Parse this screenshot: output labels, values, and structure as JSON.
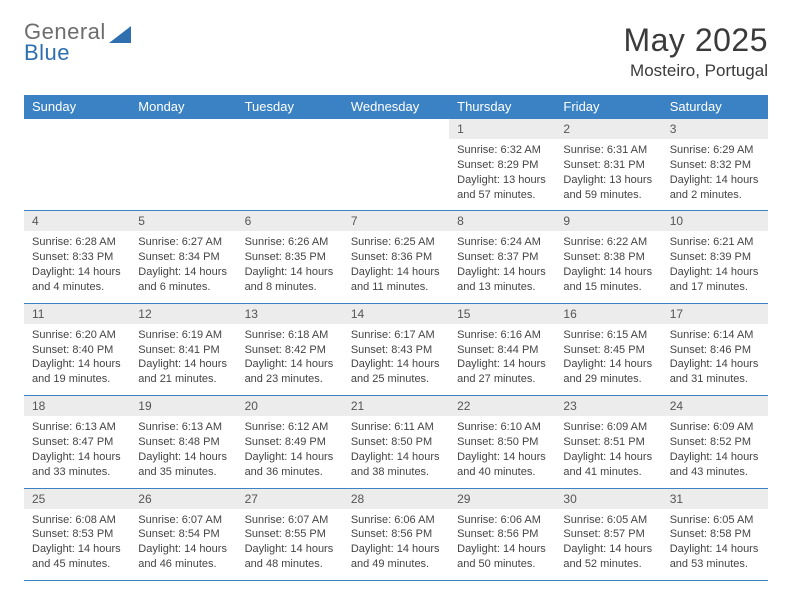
{
  "brand": {
    "word1": "General",
    "word2": "Blue",
    "word1_color": "#6d6d6d",
    "word2_color": "#2f6fb0",
    "sail_color": "#2f6fb0"
  },
  "title": "May 2025",
  "location": "Mosteiro, Portugal",
  "colors": {
    "header_bg": "#3b82c4",
    "header_fg": "#ffffff",
    "daynum_bg": "#ececec",
    "daynum_fg": "#555555",
    "body_fg": "#444444",
    "rule": "#3b82c4"
  },
  "days_of_week": [
    "Sunday",
    "Monday",
    "Tuesday",
    "Wednesday",
    "Thursday",
    "Friday",
    "Saturday"
  ],
  "weeks": [
    [
      null,
      null,
      null,
      null,
      {
        "n": "1",
        "sr": "Sunrise: 6:32 AM",
        "ss": "Sunset: 8:29 PM",
        "dl": "Daylight: 13 hours and 57 minutes."
      },
      {
        "n": "2",
        "sr": "Sunrise: 6:31 AM",
        "ss": "Sunset: 8:31 PM",
        "dl": "Daylight: 13 hours and 59 minutes."
      },
      {
        "n": "3",
        "sr": "Sunrise: 6:29 AM",
        "ss": "Sunset: 8:32 PM",
        "dl": "Daylight: 14 hours and 2 minutes."
      }
    ],
    [
      {
        "n": "4",
        "sr": "Sunrise: 6:28 AM",
        "ss": "Sunset: 8:33 PM",
        "dl": "Daylight: 14 hours and 4 minutes."
      },
      {
        "n": "5",
        "sr": "Sunrise: 6:27 AM",
        "ss": "Sunset: 8:34 PM",
        "dl": "Daylight: 14 hours and 6 minutes."
      },
      {
        "n": "6",
        "sr": "Sunrise: 6:26 AM",
        "ss": "Sunset: 8:35 PM",
        "dl": "Daylight: 14 hours and 8 minutes."
      },
      {
        "n": "7",
        "sr": "Sunrise: 6:25 AM",
        "ss": "Sunset: 8:36 PM",
        "dl": "Daylight: 14 hours and 11 minutes."
      },
      {
        "n": "8",
        "sr": "Sunrise: 6:24 AM",
        "ss": "Sunset: 8:37 PM",
        "dl": "Daylight: 14 hours and 13 minutes."
      },
      {
        "n": "9",
        "sr": "Sunrise: 6:22 AM",
        "ss": "Sunset: 8:38 PM",
        "dl": "Daylight: 14 hours and 15 minutes."
      },
      {
        "n": "10",
        "sr": "Sunrise: 6:21 AM",
        "ss": "Sunset: 8:39 PM",
        "dl": "Daylight: 14 hours and 17 minutes."
      }
    ],
    [
      {
        "n": "11",
        "sr": "Sunrise: 6:20 AM",
        "ss": "Sunset: 8:40 PM",
        "dl": "Daylight: 14 hours and 19 minutes."
      },
      {
        "n": "12",
        "sr": "Sunrise: 6:19 AM",
        "ss": "Sunset: 8:41 PM",
        "dl": "Daylight: 14 hours and 21 minutes."
      },
      {
        "n": "13",
        "sr": "Sunrise: 6:18 AM",
        "ss": "Sunset: 8:42 PM",
        "dl": "Daylight: 14 hours and 23 minutes."
      },
      {
        "n": "14",
        "sr": "Sunrise: 6:17 AM",
        "ss": "Sunset: 8:43 PM",
        "dl": "Daylight: 14 hours and 25 minutes."
      },
      {
        "n": "15",
        "sr": "Sunrise: 6:16 AM",
        "ss": "Sunset: 8:44 PM",
        "dl": "Daylight: 14 hours and 27 minutes."
      },
      {
        "n": "16",
        "sr": "Sunrise: 6:15 AM",
        "ss": "Sunset: 8:45 PM",
        "dl": "Daylight: 14 hours and 29 minutes."
      },
      {
        "n": "17",
        "sr": "Sunrise: 6:14 AM",
        "ss": "Sunset: 8:46 PM",
        "dl": "Daylight: 14 hours and 31 minutes."
      }
    ],
    [
      {
        "n": "18",
        "sr": "Sunrise: 6:13 AM",
        "ss": "Sunset: 8:47 PM",
        "dl": "Daylight: 14 hours and 33 minutes."
      },
      {
        "n": "19",
        "sr": "Sunrise: 6:13 AM",
        "ss": "Sunset: 8:48 PM",
        "dl": "Daylight: 14 hours and 35 minutes."
      },
      {
        "n": "20",
        "sr": "Sunrise: 6:12 AM",
        "ss": "Sunset: 8:49 PM",
        "dl": "Daylight: 14 hours and 36 minutes."
      },
      {
        "n": "21",
        "sr": "Sunrise: 6:11 AM",
        "ss": "Sunset: 8:50 PM",
        "dl": "Daylight: 14 hours and 38 minutes."
      },
      {
        "n": "22",
        "sr": "Sunrise: 6:10 AM",
        "ss": "Sunset: 8:50 PM",
        "dl": "Daylight: 14 hours and 40 minutes."
      },
      {
        "n": "23",
        "sr": "Sunrise: 6:09 AM",
        "ss": "Sunset: 8:51 PM",
        "dl": "Daylight: 14 hours and 41 minutes."
      },
      {
        "n": "24",
        "sr": "Sunrise: 6:09 AM",
        "ss": "Sunset: 8:52 PM",
        "dl": "Daylight: 14 hours and 43 minutes."
      }
    ],
    [
      {
        "n": "25",
        "sr": "Sunrise: 6:08 AM",
        "ss": "Sunset: 8:53 PM",
        "dl": "Daylight: 14 hours and 45 minutes."
      },
      {
        "n": "26",
        "sr": "Sunrise: 6:07 AM",
        "ss": "Sunset: 8:54 PM",
        "dl": "Daylight: 14 hours and 46 minutes."
      },
      {
        "n": "27",
        "sr": "Sunrise: 6:07 AM",
        "ss": "Sunset: 8:55 PM",
        "dl": "Daylight: 14 hours and 48 minutes."
      },
      {
        "n": "28",
        "sr": "Sunrise: 6:06 AM",
        "ss": "Sunset: 8:56 PM",
        "dl": "Daylight: 14 hours and 49 minutes."
      },
      {
        "n": "29",
        "sr": "Sunrise: 6:06 AM",
        "ss": "Sunset: 8:56 PM",
        "dl": "Daylight: 14 hours and 50 minutes."
      },
      {
        "n": "30",
        "sr": "Sunrise: 6:05 AM",
        "ss": "Sunset: 8:57 PM",
        "dl": "Daylight: 14 hours and 52 minutes."
      },
      {
        "n": "31",
        "sr": "Sunrise: 6:05 AM",
        "ss": "Sunset: 8:58 PM",
        "dl": "Daylight: 14 hours and 53 minutes."
      }
    ]
  ]
}
